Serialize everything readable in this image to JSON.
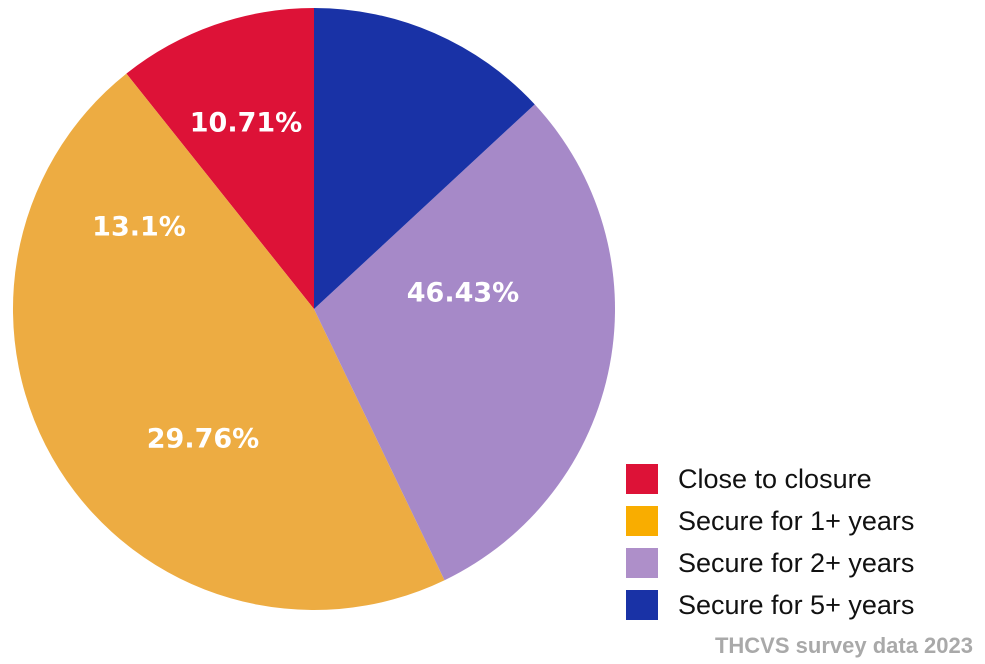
{
  "chart_data": {
    "type": "pie",
    "title": "",
    "legend_position": "bottom-right",
    "slices": [
      {
        "name": "Close to closure",
        "value": 10.71,
        "label": "10.71%",
        "color": "#dd1237"
      },
      {
        "name": "Secure for 1+ years",
        "value": 46.43,
        "label": "46.43%",
        "color": "#edac42"
      },
      {
        "name": "Secure for 2+ years",
        "value": 29.76,
        "label": "29.76%",
        "color": "#a689c8"
      },
      {
        "name": "Secure for 5+ years",
        "value": 13.1,
        "label": "13.1%",
        "color": "#1932a6"
      }
    ],
    "legend": [
      {
        "label": "Close to closure",
        "color": "#dd1237"
      },
      {
        "label": "Secure for 1+ years",
        "color": "#f9ad00"
      },
      {
        "label": "Secure for 2+ years",
        "color": "#ae8fc9"
      },
      {
        "label": "Secure for 5+ years",
        "color": "#1932a6"
      }
    ]
  },
  "source": "THCVS survey data 2023"
}
